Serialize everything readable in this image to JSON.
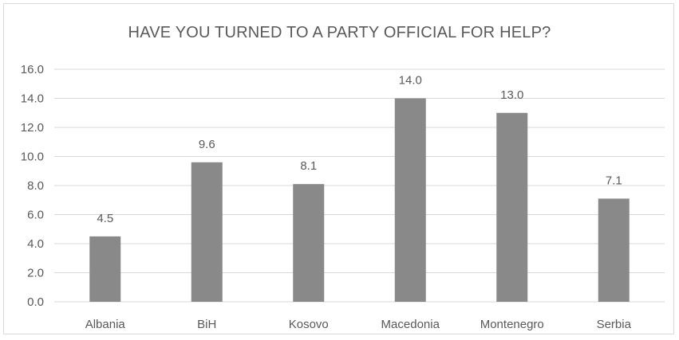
{
  "chart_data": {
    "type": "bar",
    "title": "HAVE YOU TURNED TO A PARTY OFFICIAL FOR HELP?",
    "categories": [
      "Albania",
      "BiH",
      "Kosovo",
      "Macedonia",
      "Montenegro",
      "Serbia"
    ],
    "values": [
      4.5,
      9.6,
      8.1,
      14.0,
      13.0,
      7.1
    ],
    "data_labels": [
      "4.5",
      "9.6",
      "8.1",
      "14.0",
      "13.0",
      "7.1"
    ],
    "y_ticks": [
      "0.0",
      "2.0",
      "4.0",
      "6.0",
      "8.0",
      "10.0",
      "12.0",
      "14.0",
      "16.0"
    ],
    "ylim": [
      0,
      16
    ],
    "xlabel": "",
    "ylabel": "",
    "grid": true,
    "legend": "none",
    "colors": {
      "bar": "#898989",
      "grid": "#d9d9d9",
      "text": "#595959"
    }
  }
}
